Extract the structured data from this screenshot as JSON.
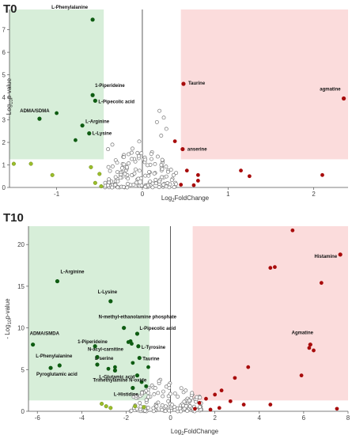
{
  "colors": {
    "down_zone": "#d7eed9",
    "up_zone": "#fbdcdc",
    "down_dark": "#0e5c12",
    "down_light": "#9bbd2a",
    "up_dark": "#a80c0c",
    "ns_fill": "#ffffff",
    "ns_stroke": "#777777"
  },
  "chart_data": [
    {
      "type": "scatter",
      "panel_label": "T0",
      "xlabel_main": "Log",
      "xlabel_sub": "2",
      "xlabel_rest": "FoldChange",
      "ylabel_prefix": "- Log",
      "ylabel_sub": "10",
      "ylabel_rest": "p-value",
      "xlim": [
        -1.55,
        2.4
      ],
      "ylim": [
        0,
        7.9
      ],
      "xticks": [
        -1,
        0,
        1,
        2
      ],
      "yticks": [
        0,
        1,
        2,
        3,
        4,
        5,
        6,
        7
      ],
      "grid": false,
      "down_region": {
        "x": [
          -1.55,
          -0.45
        ],
        "y": [
          1.25,
          7.9
        ]
      },
      "up_region": {
        "x": [
          0.45,
          2.4
        ],
        "y": [
          1.25,
          7.9
        ]
      },
      "labeled_points": [
        {
          "label": "L-Phenylalanine",
          "x": -0.58,
          "y": 7.45,
          "group": "down"
        },
        {
          "label": "1-Piperideine",
          "x": -0.58,
          "y": 4.1,
          "group": "down"
        },
        {
          "label": "L-Pipecolic acid",
          "x": -0.55,
          "y": 3.85,
          "group": "down"
        },
        {
          "label": "ADMA/SDMA",
          "x": -1.2,
          "y": 3.05,
          "group": "down"
        },
        {
          "label": "L-Arginine",
          "x": -0.7,
          "y": 2.75,
          "group": "down"
        },
        {
          "label": "L-Lysine",
          "x": -0.62,
          "y": 2.4,
          "group": "down"
        },
        {
          "label": "Taurine",
          "x": 0.48,
          "y": 4.6,
          "group": "up"
        },
        {
          "label": "agmatine",
          "x": 2.35,
          "y": 3.95,
          "group": "up"
        },
        {
          "label": "anserine",
          "x": 0.47,
          "y": 1.7,
          "group": "up"
        }
      ],
      "other_down": [
        {
          "x": -0.78,
          "y": 2.1
        },
        {
          "x": -1.0,
          "y": 3.3
        }
      ],
      "down_light_points": [
        {
          "x": -1.5,
          "y": 1.05
        },
        {
          "x": -1.3,
          "y": 1.05
        },
        {
          "x": -1.05,
          "y": 0.55
        },
        {
          "x": -0.6,
          "y": 0.9
        },
        {
          "x": -0.5,
          "y": 0.6
        },
        {
          "x": -0.55,
          "y": 0.2
        },
        {
          "x": -0.48,
          "y": 0.05
        }
      ],
      "up_dark_extra": [
        {
          "x": 0.38,
          "y": 2.05
        },
        {
          "x": 0.52,
          "y": 0.75
        },
        {
          "x": 0.65,
          "y": 0.55
        },
        {
          "x": 0.65,
          "y": 0.3
        },
        {
          "x": 0.45,
          "y": 0.12
        },
        {
          "x": 1.15,
          "y": 0.75
        },
        {
          "x": 1.25,
          "y": 0.5
        },
        {
          "x": 2.1,
          "y": 0.55
        },
        {
          "x": 0.6,
          "y": 0.1
        }
      ],
      "ns_count": 150,
      "ns_xrange": [
        -0.45,
        0.4
      ],
      "ns_ymax": 2.2,
      "ns_extra": [
        {
          "x": 0.2,
          "y": 3.4
        },
        {
          "x": 0.25,
          "y": 3.1
        },
        {
          "x": 0.17,
          "y": 2.9
        },
        {
          "x": 0.28,
          "y": 2.6
        },
        {
          "x": 0.22,
          "y": 2.3
        },
        {
          "x": -0.35,
          "y": 1.9
        },
        {
          "x": -0.4,
          "y": 1.7
        }
      ]
    },
    {
      "type": "scatter",
      "panel_label": "T10",
      "xlabel_main": "Log",
      "xlabel_sub": "2",
      "xlabel_rest": "FoldChange",
      "ylabel_prefix": "- Log",
      "ylabel_sub": "10",
      "ylabel_rest": "p-value",
      "xlim": [
        -6.4,
        8.0
      ],
      "ylim": [
        0,
        22.2
      ],
      "xticks": [
        -6,
        -4,
        -2,
        0,
        2,
        4,
        6,
        8
      ],
      "yticks": [
        0,
        5,
        10,
        15,
        20
      ],
      "grid": false,
      "down_region": {
        "x": [
          -6.4,
          -0.95
        ],
        "y": [
          1.3,
          22.2
        ]
      },
      "up_region": {
        "x": [
          1.0,
          8.0
        ],
        "y": [
          1.3,
          22.2
        ]
      },
      "labeled_points": [
        {
          "label": "L-Arginine",
          "x": -5.1,
          "y": 15.6,
          "group": "down"
        },
        {
          "label": "L-Lysine",
          "x": -2.7,
          "y": 13.2,
          "group": "down"
        },
        {
          "label": "N-methyl-ethanolamine phosphate",
          "x": -2.1,
          "y": 10.0,
          "group": "down"
        },
        {
          "label": "L-Pipecolic acid",
          "x": -1.5,
          "y": 9.3,
          "group": "down"
        },
        {
          "label": "1-Piperideine",
          "x": -3.4,
          "y": 7.8,
          "group": "down"
        },
        {
          "label": "L-Tyrosine",
          "x": -1.45,
          "y": 7.8,
          "group": "down"
        },
        {
          "label": "ADMA/SMDA",
          "x": -6.2,
          "y": 8.0,
          "group": "down"
        },
        {
          "label": "N-acyl-carnitine",
          "x": -3.3,
          "y": 6.5,
          "group": "down"
        },
        {
          "label": "Taurine",
          "x": -1.4,
          "y": 6.4,
          "group": "down"
        },
        {
          "label": "L-Phenylalanine",
          "x": -5.0,
          "y": 5.5,
          "group": "down"
        },
        {
          "label": "L-serine",
          "x": -3.3,
          "y": 5.6,
          "group": "down"
        },
        {
          "label": "Pyroglutamic acid",
          "x": -5.4,
          "y": 5.2,
          "group": "down"
        },
        {
          "label": "L-Glutamic acid",
          "x": -2.5,
          "y": 4.9,
          "group": "down"
        },
        {
          "label": "Trimethylamine N-oxide",
          "x": -1.5,
          "y": 4.3,
          "group": "down"
        },
        {
          "label": "L-Histidine",
          "x": -1.7,
          "y": 2.8,
          "group": "down"
        },
        {
          "label": "Histamine",
          "x": 7.65,
          "y": 18.8,
          "group": "up"
        },
        {
          "label": "Agmatine",
          "x": 6.3,
          "y": 8.0,
          "group": "up"
        }
      ],
      "other_down": [
        {
          "x": -1.8,
          "y": 8.4
        },
        {
          "x": -1.9,
          "y": 8.3
        },
        {
          "x": -1.75,
          "y": 8.1
        },
        {
          "x": -1.7,
          "y": 5.8
        },
        {
          "x": -2.8,
          "y": 5.1
        },
        {
          "x": -2.5,
          "y": 5.3
        },
        {
          "x": -1.0,
          "y": 5.3
        },
        {
          "x": -1.3,
          "y": 3.5
        },
        {
          "x": -1.1,
          "y": 3.0
        }
      ],
      "down_light_points": [
        {
          "x": -3.1,
          "y": 0.9
        },
        {
          "x": -2.9,
          "y": 0.6
        },
        {
          "x": -2.7,
          "y": 0.4
        },
        {
          "x": -1.6,
          "y": 0.6
        },
        {
          "x": -1.2,
          "y": 0.5
        }
      ],
      "up_dark_extra": [
        {
          "x": 5.5,
          "y": 21.7
        },
        {
          "x": 4.5,
          "y": 17.2
        },
        {
          "x": 4.7,
          "y": 17.3
        },
        {
          "x": 6.8,
          "y": 15.4
        },
        {
          "x": 6.25,
          "y": 7.6
        },
        {
          "x": 6.45,
          "y": 7.3
        },
        {
          "x": 3.5,
          "y": 5.3
        },
        {
          "x": 5.9,
          "y": 4.3
        },
        {
          "x": 2.9,
          "y": 4.0
        },
        {
          "x": 2.3,
          "y": 2.5
        },
        {
          "x": 2.0,
          "y": 2.0
        },
        {
          "x": 1.6,
          "y": 1.5
        },
        {
          "x": 2.7,
          "y": 1.2
        },
        {
          "x": 1.3,
          "y": 1.0
        },
        {
          "x": 3.3,
          "y": 0.8
        },
        {
          "x": 4.5,
          "y": 0.8
        },
        {
          "x": 2.2,
          "y": 0.4
        },
        {
          "x": 1.1,
          "y": 0.3
        },
        {
          "x": 1.8,
          "y": 0.2
        },
        {
          "x": 7.5,
          "y": 0.3
        }
      ],
      "ns_count": 140,
      "ns_xrange": [
        -1.8,
        1.4
      ],
      "ns_ymax": 4.5,
      "ns_extra": []
    }
  ]
}
